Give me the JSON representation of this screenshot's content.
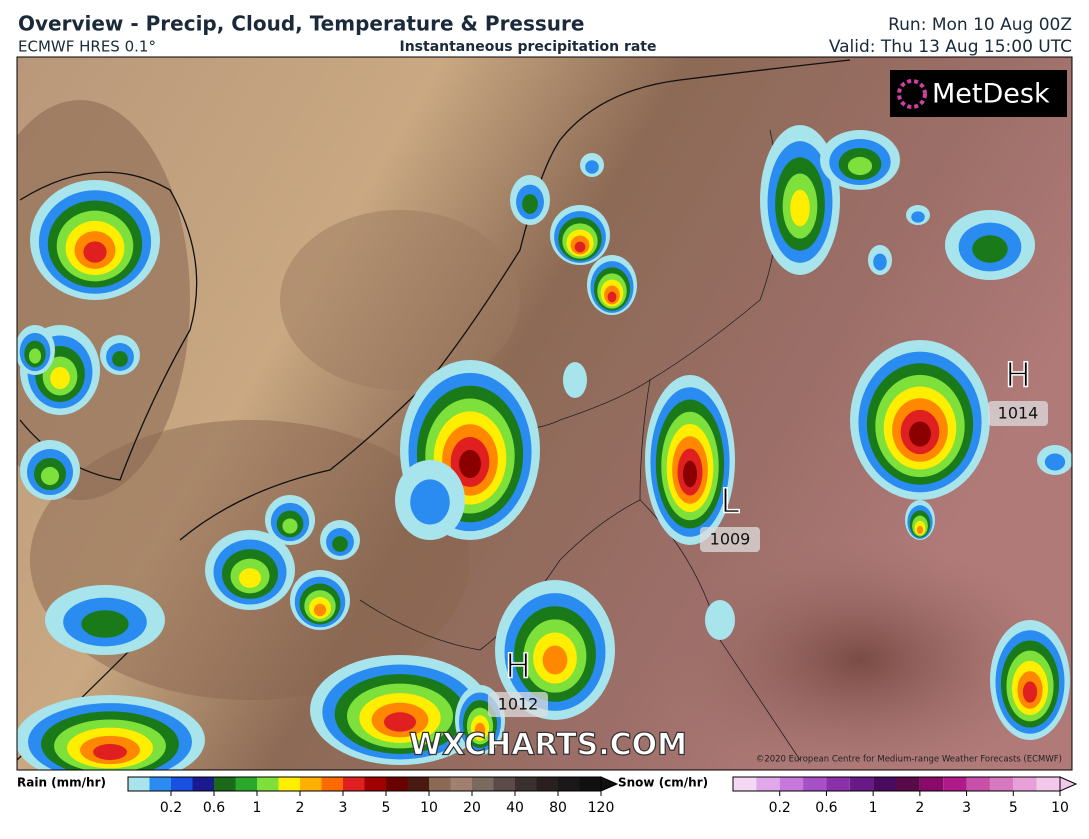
{
  "header": {
    "title": "Overview - Precip, Cloud, Temperature & Pressure",
    "model": "ECMWF HRES 0.1°",
    "subtitle": "Instantaneous precipitation rate",
    "run": "Run: Mon 10 Aug 00Z",
    "valid": "Valid: Thu 13 Aug 15:00 UTC"
  },
  "map": {
    "logo": "MetDesk",
    "watermark": "WXCHARTS.COM",
    "copyright": "©2020 European Centre for Medium-range Weather Forecasts (ECMWF)",
    "pressure_centers": [
      {
        "label": "H",
        "value": "1014"
      },
      {
        "label": "L",
        "value": "1009"
      },
      {
        "label": "H",
        "value": "1012"
      }
    ]
  },
  "legend": {
    "rain": {
      "title": "Rain (mm/hr)",
      "ticks": [
        "0.2",
        "0.6",
        "1",
        "2",
        "3",
        "5",
        "10",
        "20",
        "40",
        "80",
        "120"
      ]
    },
    "snow": {
      "title": "Snow (cm/hr)",
      "ticks": [
        "0.2",
        "0.6",
        "1",
        "2",
        "3",
        "5",
        "10"
      ]
    }
  }
}
